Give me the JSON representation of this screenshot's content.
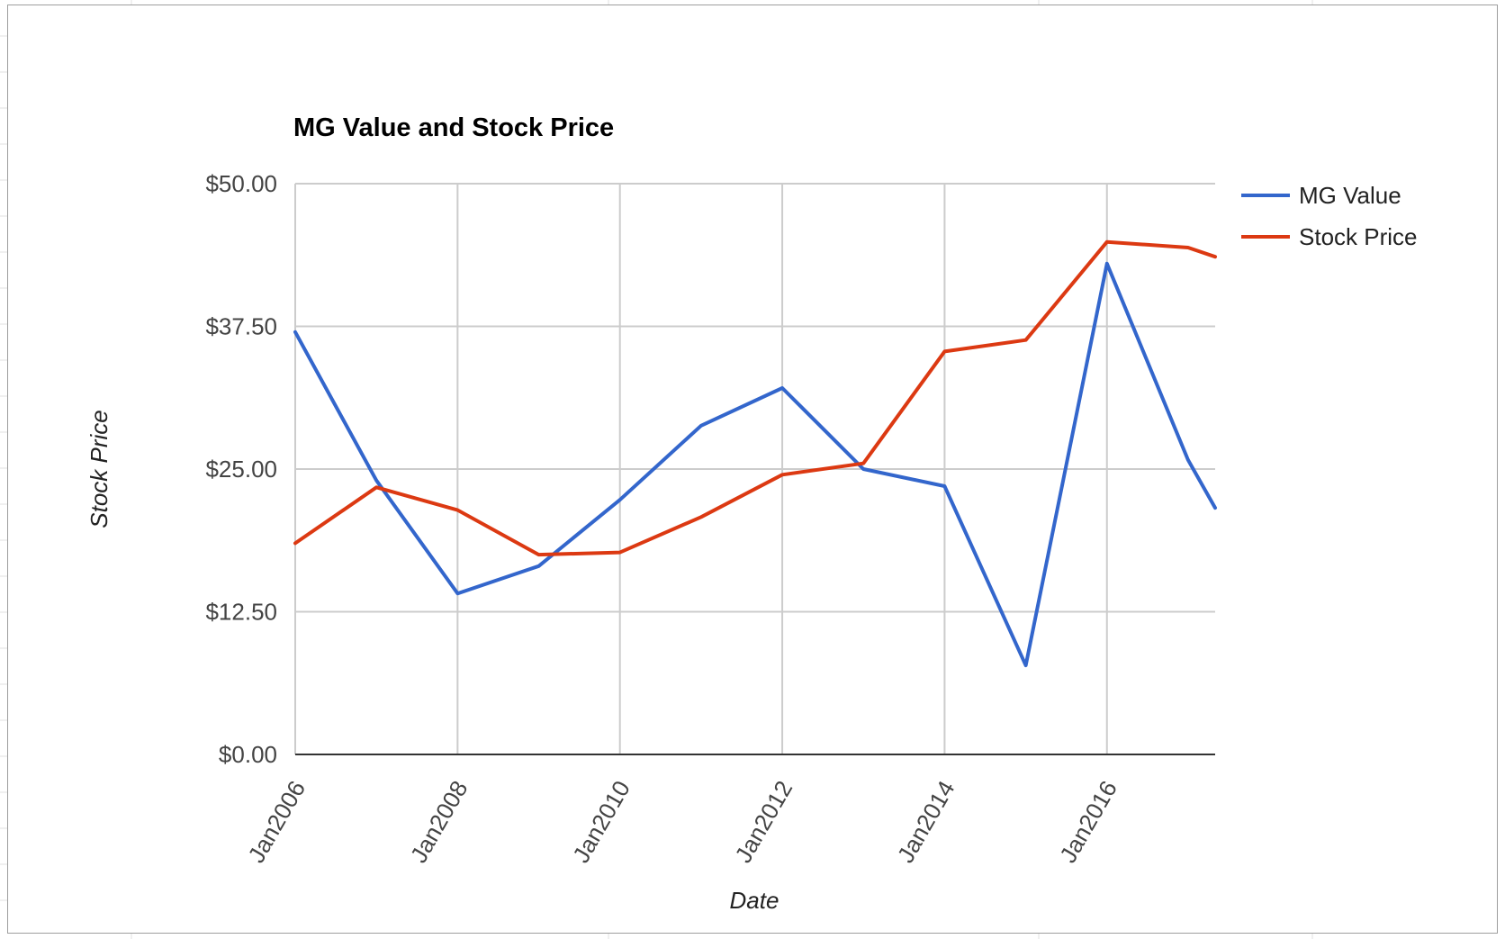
{
  "chart_data": {
    "type": "line",
    "title": "MG Value and Stock Price",
    "xlabel": "Date",
    "ylabel": "Stock Price",
    "x": [
      "2006-01",
      "2007-01",
      "2008-01",
      "2009-01",
      "2010-01",
      "2011-01",
      "2012-01",
      "2013-01",
      "2014-01",
      "2015-01",
      "2016-01",
      "2017-01",
      "2017-05"
    ],
    "series": [
      {
        "name": "MG Value",
        "color": "#3366cc",
        "values": [
          37.0,
          24.0,
          14.1,
          16.5,
          22.3,
          28.8,
          32.1,
          25.0,
          23.5,
          7.8,
          43.0,
          25.8,
          21.6
        ]
      },
      {
        "name": "Stock Price",
        "color": "#dc3912",
        "values": [
          18.5,
          23.4,
          21.4,
          17.5,
          17.7,
          20.8,
          24.5,
          25.5,
          35.3,
          36.3,
          44.9,
          44.4,
          43.6
        ]
      }
    ],
    "ylim": [
      0,
      50
    ],
    "y_ticks": [
      "$50.00",
      "$37.50",
      "$25.00",
      "$12.50",
      "$0.00"
    ],
    "y_tick_values": [
      50,
      37.5,
      25,
      12.5,
      0
    ],
    "x_ticks": [
      "Jan2006",
      "Jan2008",
      "Jan2010",
      "Jan2012",
      "Jan2014",
      "Jan2016"
    ],
    "x_tick_values": [
      "2006-01",
      "2008-01",
      "2010-01",
      "2012-01",
      "2014-01",
      "2016-01"
    ],
    "x_range": [
      "2006-01",
      "2017-05"
    ],
    "grid": true,
    "legend_position": "right"
  }
}
